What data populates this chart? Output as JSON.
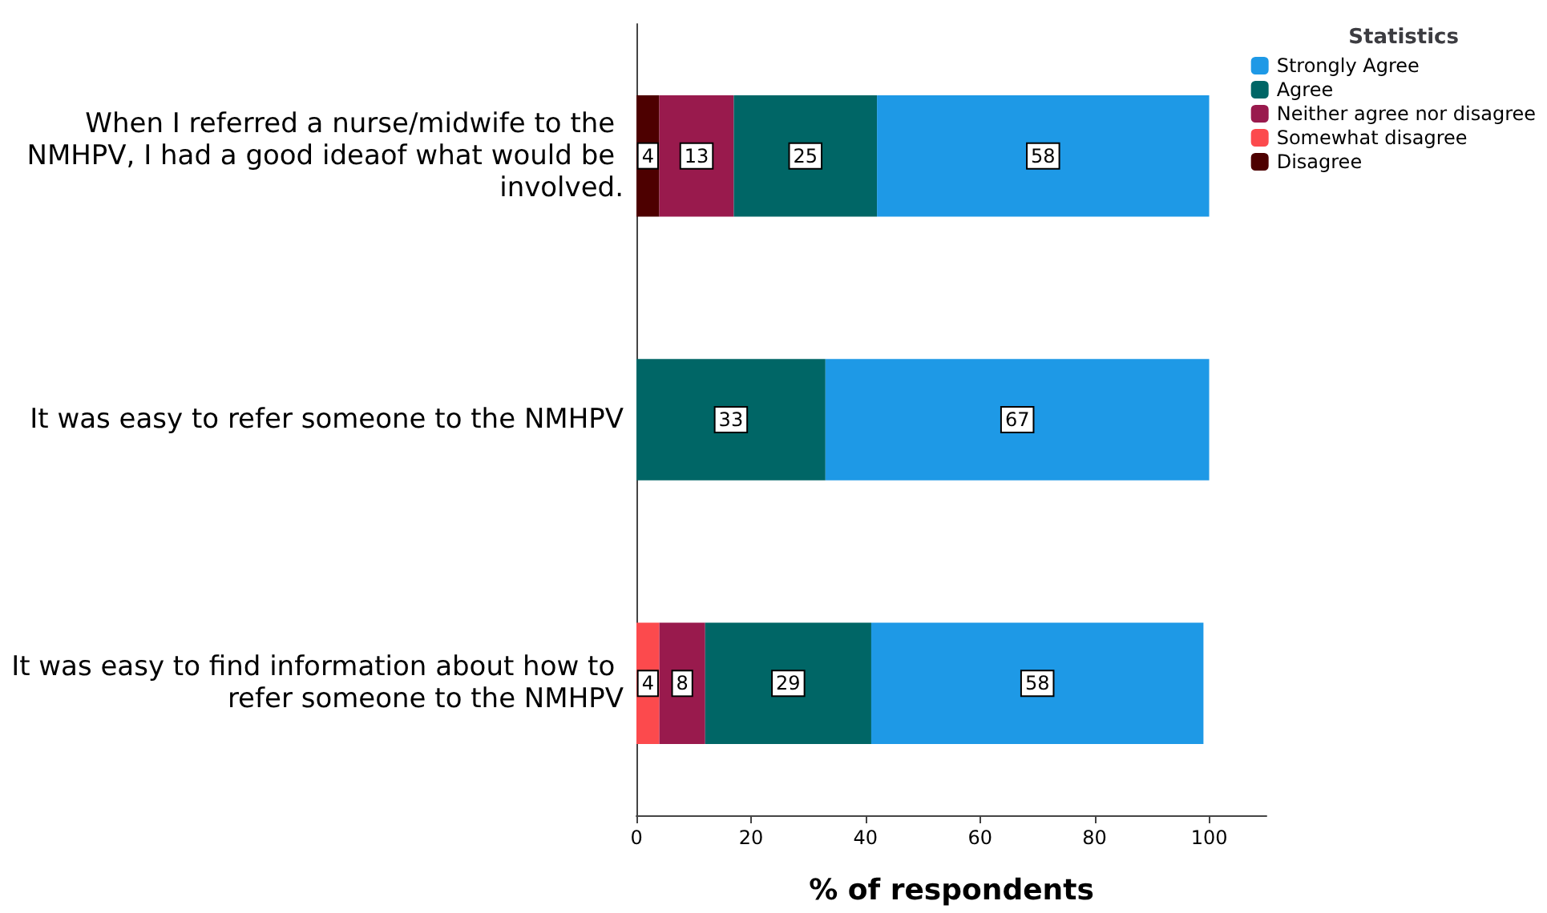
{
  "chart_data": {
    "type": "bar",
    "orientation": "horizontal",
    "stacked": true,
    "data_labels": true,
    "categories": [
      "When I referred a nurse/midwife to the NMHPV, I had a good ideaof what would be involved.",
      "It was easy to refer someone to the NMHPV",
      "It was easy to find information about how to refer someone to the NMHPV"
    ],
    "series": [
      {
        "name": "Disagree",
        "color": "#4d0000",
        "values": [
          4,
          null,
          null
        ]
      },
      {
        "name": "Somewhat disagree",
        "color": "#fc4a4d",
        "values": [
          null,
          null,
          4
        ]
      },
      {
        "name": "Neither agree nor disagree",
        "color": "#991a4d",
        "values": [
          13,
          null,
          8
        ]
      },
      {
        "name": "Agree",
        "color": "#006666",
        "values": [
          25,
          33,
          29
        ]
      },
      {
        "name": "Strongly Agree",
        "color": "#1e99e6",
        "values": [
          58,
          67,
          58
        ]
      }
    ],
    "xlabel": "% of respondents",
    "legend_title": "Statistics",
    "legend": "top right",
    "xlim": [
      0,
      110
    ],
    "xticks": [
      0,
      20,
      40,
      60,
      80,
      100
    ],
    "grid": false
  }
}
